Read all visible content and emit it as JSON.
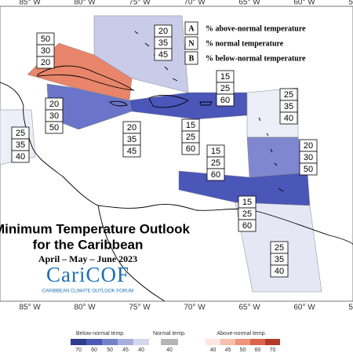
{
  "title": "Minimum Temperature Outlook",
  "subtitle": "for the Caribbean",
  "period": "April – May – June 2023",
  "logo": {
    "name": "CariCOF",
    "tagline": "CARIBBEAN CLIMATE OUTLOOK FORUM"
  },
  "longitudes": [
    "85° W",
    "80° W",
    "75° W",
    "70° W",
    "65° W",
    "60° W",
    "55° W"
  ],
  "key": [
    {
      "letter": "A",
      "text": "% above-normal temperature"
    },
    {
      "letter": "N",
      "text": "% normal temperature"
    },
    {
      "letter": "B",
      "text": "% below-normal temperature"
    }
  ],
  "regions": [
    {
      "values": [
        50,
        30,
        20
      ]
    },
    {
      "values": [
        20,
        35,
        45
      ]
    },
    {
      "values": [
        20,
        30,
        50
      ]
    },
    {
      "values": [
        20,
        35,
        45
      ]
    },
    {
      "values": [
        15,
        25,
        60
      ]
    },
    {
      "values": [
        15,
        25,
        60
      ]
    },
    {
      "values": [
        25,
        35,
        40
      ]
    },
    {
      "values": [
        15,
        25,
        60
      ]
    },
    {
      "values": [
        20,
        30,
        50
      ]
    },
    {
      "values": [
        25,
        35,
        40
      ]
    },
    {
      "values": [
        15,
        25,
        60
      ]
    },
    {
      "values": [
        25,
        35,
        40
      ]
    }
  ],
  "colorbar": {
    "below": {
      "label": "Below-normal temp.",
      "ticks": [
        70,
        60,
        50,
        45,
        40
      ]
    },
    "normal": {
      "label": "Normal temp.",
      "ticks": [
        40
      ]
    },
    "above": {
      "label": "Above-normal temp.",
      "ticks": [
        40,
        45,
        50,
        60,
        70
      ]
    }
  }
}
